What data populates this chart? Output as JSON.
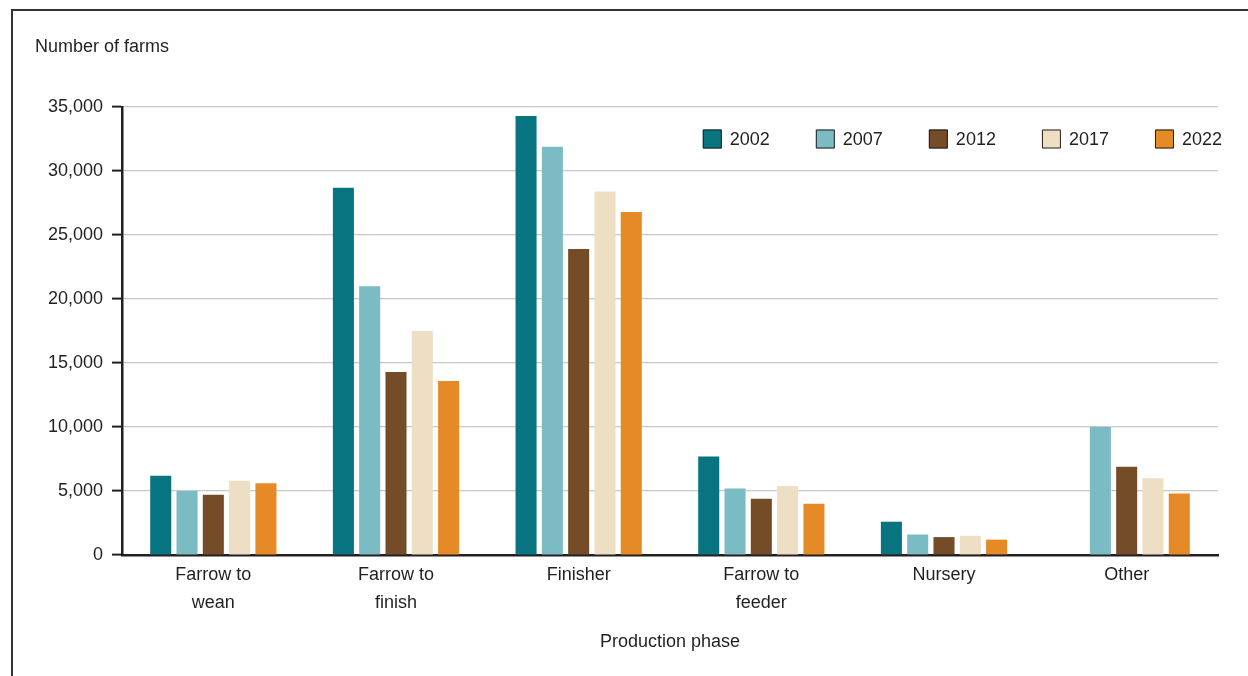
{
  "chart_data": {
    "type": "bar",
    "ylabel": "Number of farms",
    "xlabel": "Production phase",
    "categories": [
      "Farrow to wean",
      "Farrow to finish",
      "Finisher",
      "Farrow to feeder",
      "Nursery",
      "Other"
    ],
    "series": [
      {
        "name": "2002",
        "color": "#077480",
        "values": [
          6200,
          28700,
          34300,
          7700,
          2600,
          null
        ]
      },
      {
        "name": "2007",
        "color": "#7bbbc3",
        "values": [
          5000,
          21000,
          31900,
          5200,
          1600,
          10000
        ]
      },
      {
        "name": "2012",
        "color": "#754c28",
        "values": [
          4700,
          14300,
          23900,
          4400,
          1400,
          6900
        ]
      },
      {
        "name": "2017",
        "color": "#eedfc4",
        "values": [
          5800,
          17500,
          28400,
          5400,
          1500,
          6000
        ]
      },
      {
        "name": "2022",
        "color": "#e68927",
        "values": [
          5600,
          13600,
          26800,
          4000,
          1200,
          4800
        ]
      }
    ],
    "ylim": [
      0,
      35000
    ],
    "yticks": [
      0,
      {
        "value": 5000,
        "label": "5,000"
      },
      {
        "value": 10000,
        "label": "10,000"
      },
      {
        "value": 15000,
        "label": "15,000"
      },
      {
        "value": 20000,
        "label": "20,000"
      },
      {
        "value": 25000,
        "label": "25,000"
      },
      {
        "value": 30000,
        "label": "30,000"
      },
      {
        "value": 35000,
        "label": "35,000"
      }
    ],
    "grid": "y",
    "legend": "top right"
  }
}
